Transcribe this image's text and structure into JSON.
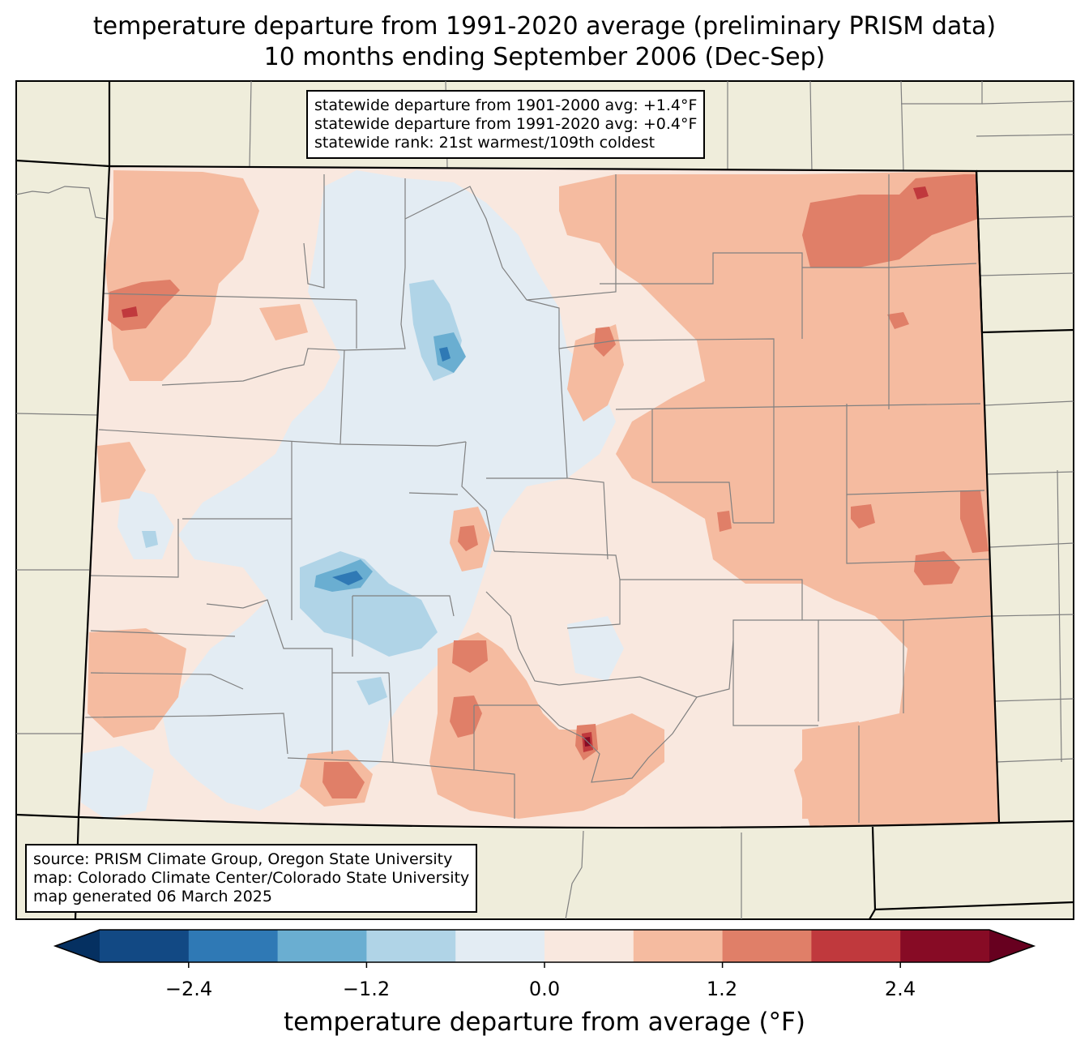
{
  "title": {
    "line1": "temperature departure from 1991-2020 average (preliminary PRISM data)",
    "line2": "10 months ending September 2006 (Dec-Sep)"
  },
  "stats": {
    "line1": "statewide departure from 1901-2000 avg: +1.4°F",
    "line2": "statewide departure from 1991-2020 avg: +0.4°F",
    "line3": "statewide rank: 21st warmest/109th coldest"
  },
  "source": {
    "line1": "source: PRISM Climate Group, Oregon State University",
    "line2": "map: Colorado Climate Center/Colorado State University",
    "line3": "map generated 06 March 2025"
  },
  "colorbar": {
    "label": "temperature departure from average (°F)",
    "ticks": [
      "−2.4",
      "−1.2",
      "0.0",
      "1.2",
      "2.4"
    ],
    "bins": [
      {
        "from": -3.0,
        "to": -2.4,
        "color": "#124984"
      },
      {
        "from": -2.4,
        "to": -1.8,
        "color": "#2f79b5"
      },
      {
        "from": -1.8,
        "to": -1.2,
        "color": "#6aaed1"
      },
      {
        "from": -1.2,
        "to": -0.6,
        "color": "#b0d4e7"
      },
      {
        "from": -0.6,
        "to": 0.0,
        "color": "#e3ecf3"
      },
      {
        "from": 0.0,
        "to": 0.6,
        "color": "#f9e8df"
      },
      {
        "from": 0.6,
        "to": 1.2,
        "color": "#f5bba0"
      },
      {
        "from": 1.2,
        "to": 1.8,
        "color": "#e07f68"
      },
      {
        "from": 1.8,
        "to": 2.4,
        "color": "#c0393d"
      },
      {
        "from": 2.4,
        "to": 3.0,
        "color": "#870b25"
      }
    ],
    "under_color": "#053061",
    "over_color": "#67001f"
  },
  "colors": {
    "land_background": "#efeddb",
    "county_lines": "#808080",
    "state_lines": "#000000"
  }
}
